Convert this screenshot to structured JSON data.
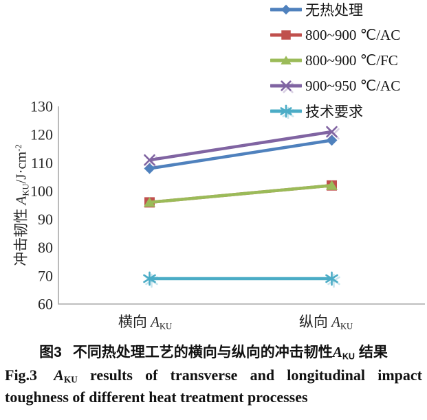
{
  "chart_data": {
    "type": "line",
    "title": "",
    "categories": [
      "横向 A_KU",
      "纵向 A_KU"
    ],
    "series": [
      {
        "name": "无热处理",
        "values": [
          108,
          118
        ],
        "color": "#4F81BD",
        "marker": "diamond"
      },
      {
        "name": "800~900 ℃/AC",
        "values": [
          96,
          102
        ],
        "color": "#C0504D",
        "marker": "square"
      },
      {
        "name": "800~900 ℃/FC",
        "values": [
          96,
          102
        ],
        "color": "#9BBB59",
        "marker": "triangle"
      },
      {
        "name": "900~950 ℃/AC",
        "values": [
          111,
          121
        ],
        "color": "#8064A2",
        "marker": "x"
      },
      {
        "name": "技术要求",
        "values": [
          69,
          69
        ],
        "color": "#4BACC6",
        "marker": "asterisk"
      }
    ],
    "xlabel": "",
    "ylabel": "冲击韧性 A_KU/J·cm⁻²",
    "ylim": [
      60,
      130
    ],
    "yticks": [
      60,
      70,
      80,
      90,
      100,
      110,
      120,
      130
    ],
    "grid": false,
    "legend_position": "top-right",
    "axis_color": "#A8A8A8",
    "tick_text_color": "#262626"
  },
  "axis": {
    "ylabel_parts": {
      "prefix": "冲击韧性 ",
      "symbol": "A",
      "sub": "KU",
      "unit": "/J·cm",
      "sup": "-2"
    },
    "xlabels": [
      {
        "prefix": "横向 ",
        "symbol": "A",
        "sub": "KU"
      },
      {
        "prefix": "纵向 ",
        "symbol": "A",
        "sub": "KU"
      }
    ]
  },
  "caption": {
    "zh": {
      "fig": "图3",
      "body": "不同热处理工艺的横向与纵向的冲击韧性",
      "symbol": "A",
      "sub": "KU",
      "tail": " 结果"
    },
    "en": {
      "fig": "Fig.3",
      "symbol": "A",
      "sub": "KU",
      "rest": " results of transverse and longitudinal impact",
      "line2": "toughness of different heat treatment processes"
    }
  }
}
